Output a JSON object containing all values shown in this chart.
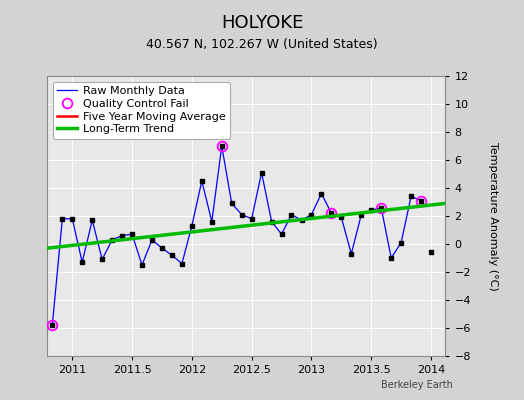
{
  "title": "HOLYOKE",
  "subtitle": "40.567 N, 102.267 W (United States)",
  "ylabel": "Temperature Anomaly (°C)",
  "credit": "Berkeley Earth",
  "xlim": [
    2010.79,
    2014.12
  ],
  "ylim": [
    -8,
    12
  ],
  "yticks": [
    -8,
    -6,
    -4,
    -2,
    0,
    2,
    4,
    6,
    8,
    10,
    12
  ],
  "xticks": [
    2011,
    2011.5,
    2012,
    2012.5,
    2013,
    2013.5,
    2014
  ],
  "bg_color": "#d3d3d3",
  "plot_bg": "#e8e8e8",
  "raw_x": [
    2010.833,
    2010.917,
    2011.0,
    2011.083,
    2011.167,
    2011.25,
    2011.333,
    2011.417,
    2011.5,
    2011.583,
    2011.667,
    2011.75,
    2011.833,
    2011.917,
    2012.0,
    2012.083,
    2012.167,
    2012.25,
    2012.333,
    2012.417,
    2012.5,
    2012.583,
    2012.667,
    2012.75,
    2012.833,
    2012.917,
    2013.0,
    2013.083,
    2013.167,
    2013.25,
    2013.333,
    2013.417,
    2013.5,
    2013.583,
    2013.667,
    2013.75,
    2013.833,
    2013.917
  ],
  "raw_y": [
    -5.8,
    1.8,
    1.8,
    -1.3,
    1.7,
    -1.1,
    0.3,
    0.6,
    0.7,
    -1.5,
    0.3,
    -0.3,
    -0.8,
    -1.4,
    1.3,
    4.5,
    1.6,
    7.0,
    2.9,
    2.1,
    1.8,
    5.1,
    1.6,
    0.7,
    2.1,
    1.7,
    2.1,
    3.6,
    2.2,
    1.9,
    -0.7,
    2.1,
    2.4,
    2.6,
    -1.0,
    0.1,
    3.4,
    3.1
  ],
  "isolated_x": [
    2014.0
  ],
  "isolated_y": [
    -0.6
  ],
  "qc_fail_x": [
    2010.833,
    2012.25,
    2013.167,
    2013.583,
    2013.917
  ],
  "qc_fail_y": [
    -5.8,
    7.0,
    2.2,
    2.6,
    3.1
  ],
  "trend_x": [
    2010.79,
    2014.12
  ],
  "trend_y": [
    -0.3,
    2.9
  ],
  "raw_color": "#0000ff",
  "dot_color": "#000000",
  "qc_color": "#ff00ff",
  "trend_color": "#00bb00",
  "ma_color": "#ff0000",
  "grid_color": "#ffffff",
  "title_fontsize": 13,
  "subtitle_fontsize": 9,
  "label_fontsize": 8,
  "tick_fontsize": 8,
  "legend_fontsize": 8
}
